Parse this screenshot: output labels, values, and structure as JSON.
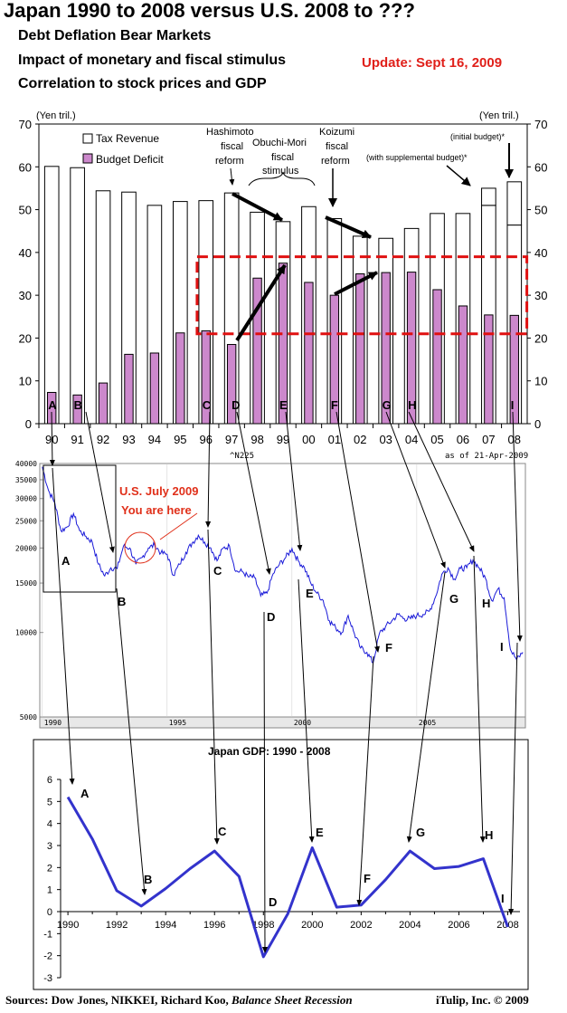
{
  "header": {
    "title": "Japan 1990 to 2008 versus U.S. 2008 to ???",
    "subtitle1": "Debt Deflation Bear Markets",
    "subtitle2": "Impact of monetary and fiscal stimulus",
    "subtitle3": "Correlation to stock prices and GDP",
    "update": "Update: Sept 16, 2009"
  },
  "footer": {
    "sources_prefix": "Sources: Dow Jones, NIKKEI, Richard Koo, ",
    "sources_book": "Balance Sheet Recession",
    "credit": "iTulip, Inc. © 2009"
  },
  "colors": {
    "revenue_fill": "#ffffff",
    "deficit_fill": "#cc88cc",
    "highlight": "#e01010",
    "nikkei_line": "#1a1ad8",
    "gdp_line": "#3333cc",
    "annotation_red": "#e0301a"
  },
  "chart_data": [
    {
      "type": "bar",
      "unit_left": "(Yen tril.)",
      "unit_right": "(Yen tril.)",
      "categories": [
        "90",
        "91",
        "92",
        "93",
        "94",
        "95",
        "96",
        "97",
        "98",
        "99",
        "00",
        "01",
        "02",
        "03",
        "04",
        "05",
        "06",
        "07",
        "08"
      ],
      "ylim": [
        0,
        70
      ],
      "yticks": [
        0,
        10,
        20,
        30,
        40,
        50,
        60,
        70
      ],
      "series": [
        {
          "name": "Tax Revenue",
          "values": [
            60.1,
            59.8,
            54.4,
            54.1,
            51.0,
            51.9,
            52.1,
            53.9,
            49.4,
            47.2,
            50.7,
            47.9,
            43.8,
            43.3,
            45.6,
            49.1,
            49.1,
            51.0,
            46.4
          ]
        },
        {
          "name": "Budget Deficit",
          "values": [
            7.3,
            6.7,
            9.5,
            16.2,
            16.5,
            21.2,
            21.7,
            18.5,
            34.0,
            37.5,
            33.0,
            30.0,
            35.0,
            35.3,
            35.4,
            31.3,
            27.5,
            25.4,
            25.3
          ]
        }
      ],
      "extra_bars": [
        {
          "category": "07",
          "value": 55.0
        },
        {
          "category": "08",
          "value": 56.5
        }
      ],
      "annotations": [
        "Hashimoto fiscal reform",
        "Obuchi-Mori fiscal stimulus",
        "Koizumi fiscal reform",
        "(with supplemental budget)*",
        "(initial budget)*"
      ],
      "event_labels": [
        "A",
        "B",
        "C",
        "D",
        "E",
        "F",
        "G",
        "H",
        "I"
      ],
      "highlight_box": {
        "x_from": "96",
        "x_to": "08",
        "y_from": 21,
        "y_to": 39
      }
    },
    {
      "type": "line",
      "series_name": "^N225",
      "as_of": "as of 21-Apr-2009",
      "scale": "log",
      "ylim": [
        5000,
        40000
      ],
      "yticks": [
        5000,
        10000,
        15000,
        20000,
        25000,
        30000,
        35000,
        40000
      ],
      "xticks": [
        "1990",
        "1995",
        "2000",
        "2005"
      ],
      "x": [
        1990.0,
        1990.25,
        1990.5,
        1990.75,
        1991.0,
        1991.25,
        1991.5,
        1991.75,
        1992.0,
        1992.25,
        1992.5,
        1992.75,
        1993.0,
        1993.25,
        1993.5,
        1993.75,
        1994.0,
        1994.25,
        1994.5,
        1994.75,
        1995.0,
        1995.25,
        1995.5,
        1995.75,
        1996.0,
        1996.25,
        1996.5,
        1996.75,
        1997.0,
        1997.25,
        1997.5,
        1997.75,
        1998.0,
        1998.25,
        1998.5,
        1998.75,
        1999.0,
        1999.25,
        1999.5,
        1999.75,
        2000.0,
        2000.25,
        2000.5,
        2000.75,
        2001.0,
        2001.25,
        2001.5,
        2001.75,
        2002.0,
        2002.25,
        2002.5,
        2002.75,
        2003.0,
        2003.25,
        2003.5,
        2003.75,
        2004.0,
        2004.25,
        2004.5,
        2004.75,
        2005.0,
        2005.25,
        2005.5,
        2005.75,
        2006.0,
        2006.25,
        2006.5,
        2006.75,
        2007.0,
        2007.25,
        2007.5,
        2007.75,
        2008.0,
        2008.25,
        2008.5,
        2008.75,
        2009.0,
        2009.25
      ],
      "values": [
        38900,
        32000,
        29000,
        23000,
        23800,
        26500,
        23000,
        22000,
        21000,
        17500,
        15900,
        17000,
        16900,
        20300,
        20000,
        17500,
        18500,
        20000,
        20500,
        19200,
        19000,
        16000,
        17500,
        19300,
        20800,
        22200,
        21000,
        20000,
        18000,
        20000,
        20300,
        16500,
        16500,
        15800,
        15700,
        13500,
        13800,
        16200,
        17500,
        18500,
        19900,
        18000,
        17000,
        15000,
        13800,
        13000,
        11000,
        10400,
        10000,
        11500,
        9900,
        8800,
        8500,
        7800,
        9900,
        10500,
        11000,
        11600,
        11200,
        11200,
        11500,
        11600,
        11900,
        13400,
        16100,
        17000,
        15500,
        16900,
        17000,
        18100,
        17000,
        15600,
        13000,
        14300,
        13300,
        8700,
        8000,
        8500
      ],
      "annotation": [
        "U.S. July 2009",
        "You are here"
      ],
      "event_labels": [
        "A",
        "B",
        "C",
        "D",
        "E",
        "F",
        "G",
        "H",
        "I"
      ]
    },
    {
      "type": "line",
      "title": "Japan GDP: 1990 - 2008",
      "ylim": [
        -3,
        6
      ],
      "yticks": [
        -3,
        -2,
        -1,
        0,
        1,
        2,
        3,
        4,
        5,
        6
      ],
      "xticks": [
        "1990",
        "1992",
        "1994",
        "1996",
        "1998",
        "2000",
        "2002",
        "2004",
        "2006",
        "2008"
      ],
      "x": [
        1990,
        1991,
        1992,
        1993,
        1994,
        1995,
        1996,
        1997,
        1998,
        1999,
        2000,
        2001,
        2002,
        2003,
        2004,
        2005,
        2006,
        2007,
        2008
      ],
      "values": [
        5.2,
        3.3,
        0.95,
        0.25,
        1.05,
        1.95,
        2.75,
        1.6,
        -2.05,
        -0.1,
        2.9,
        0.2,
        0.3,
        1.45,
        2.75,
        1.95,
        2.05,
        2.4,
        -0.7
      ],
      "event_labels": [
        "A",
        "B",
        "C",
        "D",
        "E",
        "F",
        "G",
        "H",
        "I"
      ]
    }
  ]
}
